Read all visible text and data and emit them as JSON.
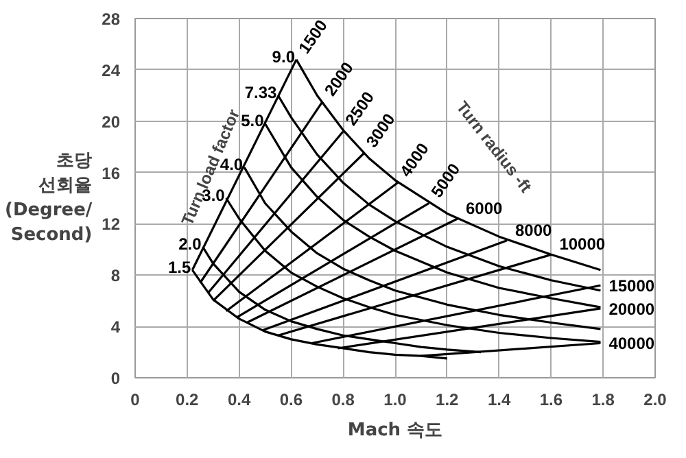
{
  "chart_data": {
    "type": "line",
    "xlabel": "Mach 속도",
    "ylabel": "초당\n선회율\n(Degree/\nSecond)",
    "xlim": [
      0,
      2.0
    ],
    "ylim": [
      0,
      28
    ],
    "xticks": [
      0,
      0.2,
      0.4,
      0.6,
      0.8,
      {
        "value": 1,
        "label": "1.0"
      },
      1.2,
      1.4,
      1.6,
      1.8,
      {
        "value": 2,
        "label": "2.0"
      }
    ],
    "yticks": [
      0,
      4,
      8,
      12,
      16,
      20,
      24,
      28
    ],
    "grid": true,
    "marker": "none",
    "line_style": "solid",
    "annotations": [
      "Turn load factor",
      "Turn radius -ft"
    ],
    "series": [
      {
        "name": "1.5",
        "color": "#000000",
        "x": [
          0.22,
          0.3,
          0.4,
          0.5,
          0.6,
          0.7,
          0.8,
          0.9,
          1.0,
          1.1,
          1.2
        ],
        "values": [
          8.4,
          6.1,
          4.6,
          3.6,
          3.0,
          2.6,
          2.3,
          2.0,
          1.8,
          1.7,
          1.5
        ]
      },
      {
        "name": "2.0",
        "color": "#000000",
        "x": [
          0.26,
          0.3,
          0.4,
          0.5,
          0.6,
          0.7,
          0.8,
          0.9,
          1.0,
          1.1,
          1.2,
          1.33
        ],
        "values": [
          10.2,
          8.9,
          6.7,
          5.3,
          4.4,
          3.8,
          3.3,
          3.0,
          2.7,
          2.4,
          2.2,
          2.0
        ]
      },
      {
        "name": "3.0",
        "color": "#000000",
        "x": [
          0.35,
          0.4,
          0.5,
          0.6,
          0.7,
          0.8,
          0.9,
          1.0,
          1.2,
          1.4,
          1.6,
          1.79
        ],
        "values": [
          14.0,
          12.4,
          9.9,
          8.2,
          7.1,
          6.2,
          5.5,
          4.9,
          4.1,
          3.5,
          3.1,
          2.8
        ]
      },
      {
        "name": "4.0",
        "color": "#000000",
        "x": [
          0.42,
          0.5,
          0.6,
          0.7,
          0.8,
          0.9,
          1.0,
          1.2,
          1.4,
          1.6,
          1.79
        ],
        "values": [
          16.4,
          13.6,
          11.4,
          9.7,
          8.5,
          7.6,
          6.8,
          5.7,
          4.9,
          4.3,
          3.8
        ]
      },
      {
        "name": "5.0",
        "color": "#000000",
        "x": [
          0.5,
          0.6,
          0.7,
          0.8,
          0.9,
          1.0,
          1.2,
          1.4,
          1.6,
          1.79
        ],
        "values": [
          19.8,
          16.4,
          14.1,
          12.3,
          11.0,
          9.9,
          8.2,
          7.0,
          6.2,
          5.5
        ]
      },
      {
        "name": "7.33",
        "color": "#000000",
        "x": [
          0.55,
          0.6,
          0.7,
          0.8,
          0.9,
          1.0,
          1.2,
          1.4,
          1.6,
          1.79
        ],
        "values": [
          22.0,
          20.3,
          17.4,
          15.2,
          13.5,
          12.2,
          10.2,
          8.7,
          7.6,
          6.8
        ]
      },
      {
        "name": "9.0",
        "color": "#000000",
        "x": [
          0.62,
          0.7,
          0.8,
          0.9,
          1.0,
          1.2,
          1.4,
          1.6,
          1.79
        ],
        "values": [
          24.8,
          22.0,
          19.3,
          17.1,
          15.4,
          12.8,
          11.0,
          9.6,
          8.4
        ]
      },
      {
        "name": "1500",
        "color": "#000000",
        "x": [
          0.22,
          0.62
        ],
        "values": [
          8.4,
          24.8
        ]
      },
      {
        "name": "2000",
        "color": "#000000",
        "x": [
          0.25,
          0.72
        ],
        "values": [
          7.4,
          21.5
        ]
      },
      {
        "name": "2500",
        "color": "#000000",
        "x": [
          0.28,
          0.8
        ],
        "values": [
          6.6,
          19.2
        ]
      },
      {
        "name": "3000",
        "color": "#000000",
        "x": [
          0.3,
          0.88
        ],
        "values": [
          6.0,
          17.5
        ]
      },
      {
        "name": "4000",
        "color": "#000000",
        "x": [
          0.35,
          1.01
        ],
        "values": [
          5.2,
          15.2
        ]
      },
      {
        "name": "5000",
        "color": "#000000",
        "x": [
          0.39,
          1.13
        ],
        "values": [
          4.7,
          13.6
        ]
      },
      {
        "name": "6000",
        "color": "#000000",
        "x": [
          0.43,
          1.24
        ],
        "values": [
          4.3,
          12.4
        ]
      },
      {
        "name": "8000",
        "color": "#000000",
        "x": [
          0.49,
          1.43
        ],
        "values": [
          3.7,
          10.7
        ]
      },
      {
        "name": "10000",
        "color": "#000000",
        "x": [
          0.55,
          1.6
        ],
        "values": [
          3.3,
          9.6
        ]
      },
      {
        "name": "15000",
        "color": "#000000",
        "x": [
          0.68,
          1.79
        ],
        "values": [
          2.7,
          7.2
        ]
      },
      {
        "name": "20000",
        "color": "#000000",
        "x": [
          0.78,
          1.79
        ],
        "values": [
          2.3,
          5.4
        ]
      },
      {
        "name": "40000",
        "color": "#000000",
        "x": [
          1.1,
          1.79
        ],
        "values": [
          1.7,
          2.7
        ]
      }
    ]
  }
}
